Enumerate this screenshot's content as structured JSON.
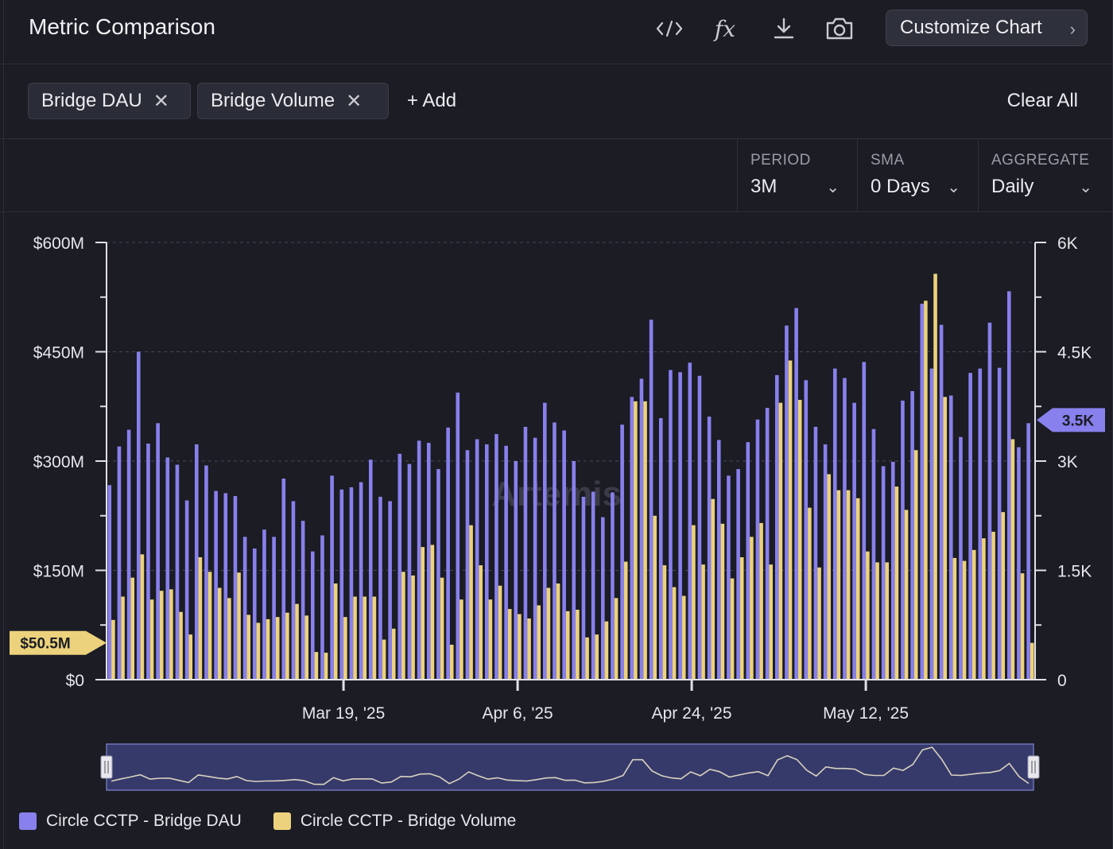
{
  "header": {
    "title": "Metric Comparison",
    "icons": [
      "code-icon",
      "formula-icon",
      "download-icon",
      "camera-icon"
    ],
    "formula_label": "fx",
    "customize_label": "Customize Chart"
  },
  "filters": {
    "chips": [
      {
        "label": "Bridge DAU"
      },
      {
        "label": "Bridge Volume"
      }
    ],
    "add_label": "+ Add",
    "clear_label": "Clear All"
  },
  "controls": [
    {
      "label": "PERIOD",
      "value": "3M"
    },
    {
      "label": "SMA",
      "value": "0 Days"
    },
    {
      "label": "AGGREGATE",
      "value": "Daily"
    }
  ],
  "colors": {
    "dau": "#8880ec",
    "volume": "#ecd27c",
    "background": "#1b1c24"
  },
  "chart_data": {
    "type": "bar",
    "watermark": "Artemis",
    "x_ticks": [
      {
        "index": 24,
        "label": "Mar 19, '25"
      },
      {
        "index": 42,
        "label": "Apr 6, '25"
      },
      {
        "index": 60,
        "label": "Apr 24, '25"
      },
      {
        "index": 78,
        "label": "May 12, '25"
      }
    ],
    "y_left": {
      "ticks": [
        "$0",
        "$150M",
        "$300M",
        "$450M",
        "$600M"
      ],
      "ylim": [
        0,
        600
      ]
    },
    "y_right": {
      "ticks": [
        "0",
        "1.5K",
        "3K",
        "4.5K",
        "6K"
      ],
      "ylim": [
        0,
        6000
      ]
    },
    "last_value_labels": {
      "volume": "$50.5M",
      "dau": "3.5K"
    },
    "grid": true,
    "series": [
      {
        "name": "Circle CCTP - Bridge DAU",
        "axis": "right",
        "values": [
          2670,
          3200,
          3430,
          4500,
          3240,
          3520,
          3050,
          2950,
          2460,
          3230,
          2940,
          2590,
          2560,
          2520,
          1960,
          1800,
          2060,
          1960,
          2760,
          2450,
          2180,
          1760,
          1980,
          2800,
          2610,
          2640,
          2710,
          3020,
          2510,
          2450,
          3100,
          2960,
          3280,
          3250,
          2890,
          3460,
          3940,
          3150,
          3300,
          3230,
          3370,
          3210,
          3000,
          3470,
          3320,
          3800,
          3530,
          3420,
          3000,
          2510,
          2580,
          2230,
          2570,
          3500,
          3880,
          4130,
          4940,
          3590,
          4250,
          4220,
          4350,
          4170,
          3610,
          3290,
          2800,
          2890,
          3260,
          3570,
          3730,
          4180,
          4860,
          5100,
          4110,
          3470,
          3230,
          4270,
          4140,
          3800,
          4360,
          3440,
          2930,
          2990,
          3830,
          3960,
          5160,
          4270,
          4870,
          3900,
          3330,
          4210,
          4270,
          4900,
          4280,
          5330,
          3190,
          3520
        ],
        "unit": "users"
      },
      {
        "name": "Circle CCTP - Bridge Volume",
        "axis": "left",
        "values": [
          82,
          114,
          140,
          172,
          110,
          122,
          124,
          93,
          62,
          168,
          148,
          126,
          112,
          147,
          89,
          78,
          83,
          86,
          92,
          104,
          88,
          38,
          37,
          132,
          86,
          114,
          114,
          114,
          55,
          70,
          148,
          143,
          182,
          185,
          140,
          48,
          110,
          212,
          157,
          110,
          129,
          97,
          90,
          84,
          102,
          126,
          132,
          94,
          96,
          58,
          62,
          80,
          112,
          162,
          382,
          382,
          225,
          157,
          127,
          115,
          212,
          158,
          248,
          214,
          139,
          168,
          196,
          215,
          158,
          380,
          438,
          384,
          236,
          154,
          282,
          260,
          260,
          249,
          176,
          161,
          161,
          265,
          233,
          315,
          520,
          557,
          388,
          167,
          163,
          178,
          194,
          203,
          230,
          330,
          146,
          50.5
        ],
        "unit": "USD millions"
      }
    ]
  },
  "navigator": {
    "label": "range-navigator"
  },
  "legend": [
    {
      "label": "Circle CCTP - Bridge DAU"
    },
    {
      "label": "Circle CCTP - Bridge Volume"
    }
  ]
}
